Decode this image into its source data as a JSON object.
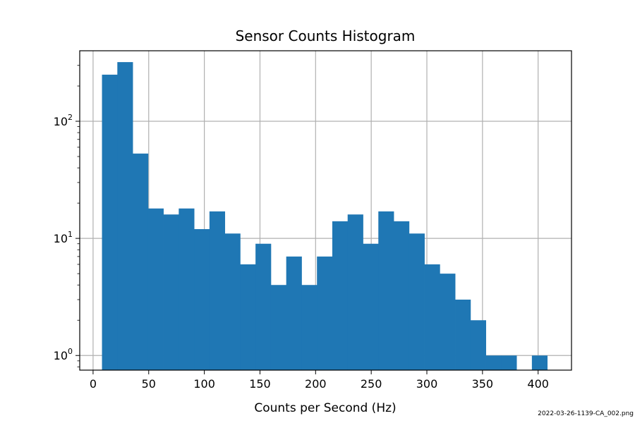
{
  "chart_data": {
    "type": "bar",
    "title": "Sensor Counts Histogram",
    "xlabel": "Counts per Second (Hz)",
    "ylabel": "",
    "y_scale": "log",
    "grid": true,
    "bar_color": "#1f77b4",
    "grid_color": "#b0b0b0",
    "xlim": [
      -12,
      430
    ],
    "ylim": [
      0.75,
      400
    ],
    "x_ticks": [
      0,
      50,
      100,
      150,
      200,
      250,
      300,
      350,
      400
    ],
    "y_ticks": [
      {
        "value": 1,
        "base": "10",
        "exp": "0"
      },
      {
        "value": 10,
        "base": "10",
        "exp": "1"
      },
      {
        "value": 100,
        "base": "10",
        "exp": "2"
      }
    ],
    "bin_edges": [
      8,
      21.8,
      35.6,
      49.4,
      63.2,
      77,
      90.8,
      104.6,
      118.4,
      132.2,
      146,
      159.8,
      173.6,
      187.4,
      201.2,
      215,
      228.8,
      242.6,
      256.4,
      270.2,
      284,
      297.8,
      311.6,
      325.4,
      339.2,
      353,
      366.8,
      380.6,
      394.4,
      408.2
    ],
    "counts": [
      250,
      320,
      53,
      18,
      16,
      18,
      12,
      17,
      11,
      6,
      9,
      4,
      7,
      4,
      7,
      14,
      16,
      9,
      17,
      14,
      11,
      6,
      5,
      3,
      2,
      1,
      1,
      0,
      1
    ]
  },
  "footer_text": "2022-03-26-1139-CA_002.png"
}
